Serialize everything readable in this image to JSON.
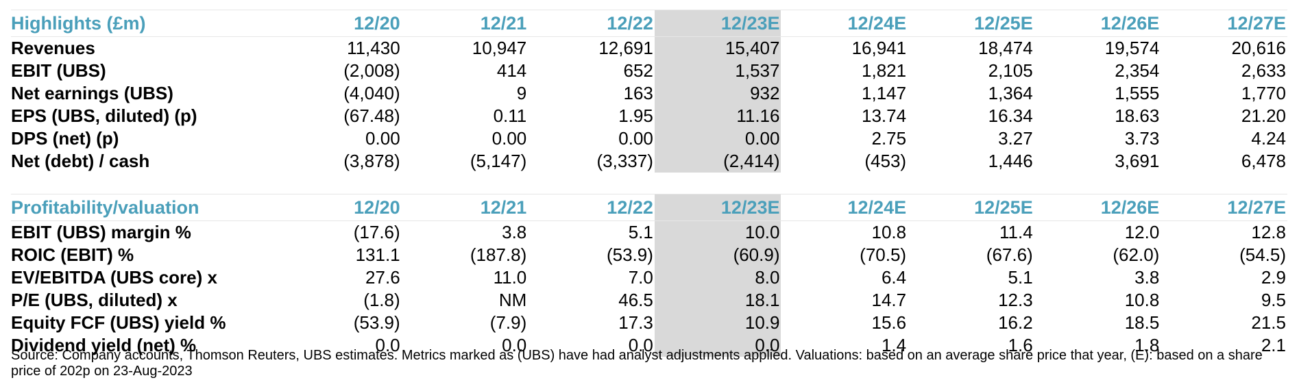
{
  "highlights": {
    "title": "Highlights (£m)",
    "years": [
      "12/20",
      "12/21",
      "12/22",
      "12/23E",
      "12/24E",
      "12/25E",
      "12/26E",
      "12/27E"
    ],
    "rows": [
      {
        "label": "Revenues",
        "values": [
          "11,430",
          "10,947",
          "12,691",
          "15,407",
          "16,941",
          "18,474",
          "19,574",
          "20,616"
        ]
      },
      {
        "label": "EBIT (UBS)",
        "values": [
          "(2,008)",
          "414",
          "652",
          "1,537",
          "1,821",
          "2,105",
          "2,354",
          "2,633"
        ]
      },
      {
        "label": "Net earnings (UBS)",
        "values": [
          "(4,040)",
          "9",
          "163",
          "932",
          "1,147",
          "1,364",
          "1,555",
          "1,770"
        ]
      },
      {
        "label": "EPS (UBS, diluted) (p)",
        "values": [
          "(67.48)",
          "0.11",
          "1.95",
          "11.16",
          "13.74",
          "16.34",
          "18.63",
          "21.20"
        ]
      },
      {
        "label": "DPS (net) (p)",
        "values": [
          "0.00",
          "0.00",
          "0.00",
          "0.00",
          "2.75",
          "3.27",
          "3.73",
          "4.24"
        ]
      },
      {
        "label": "Net (debt) / cash",
        "values": [
          "(3,878)",
          "(5,147)",
          "(3,337)",
          "(2,414)",
          "(453)",
          "1,446",
          "3,691",
          "6,478"
        ]
      }
    ]
  },
  "profitability": {
    "title": "Profitability/valuation",
    "years": [
      "12/20",
      "12/21",
      "12/22",
      "12/23E",
      "12/24E",
      "12/25E",
      "12/26E",
      "12/27E"
    ],
    "rows": [
      {
        "label": "EBIT (UBS) margin %",
        "values": [
          "(17.6)",
          "3.8",
          "5.1",
          "10.0",
          "10.8",
          "11.4",
          "12.0",
          "12.8"
        ]
      },
      {
        "label": "ROIC (EBIT) %",
        "values": [
          "131.1",
          "(187.8)",
          "(53.9)",
          "(60.9)",
          "(70.5)",
          "(67.6)",
          "(62.0)",
          "(54.5)"
        ]
      },
      {
        "label": "EV/EBITDA (UBS core) x",
        "values": [
          "27.6",
          "11.0",
          "7.0",
          "8.0",
          "6.4",
          "5.1",
          "3.8",
          "2.9"
        ]
      },
      {
        "label": "P/E (UBS, diluted) x",
        "values": [
          "(1.8)",
          "NM",
          "46.5",
          "18.1",
          "14.7",
          "12.3",
          "10.8",
          "9.5"
        ]
      },
      {
        "label": "Equity FCF (UBS) yield %",
        "values": [
          "(53.9)",
          "(7.9)",
          "17.3",
          "10.9",
          "15.6",
          "16.2",
          "18.5",
          "21.5"
        ]
      },
      {
        "label": "Dividend yield (net) %",
        "values": [
          "0.0",
          "0.0",
          "0.0",
          "0.0",
          "1.4",
          "1.6",
          "1.8",
          "2.1"
        ]
      }
    ]
  },
  "shaded_column": "12/23E",
  "colors": {
    "header_text": "#4a9fba",
    "shaded_bg": "#d9d9d9",
    "body_text": "#000000"
  },
  "footnote": "Source: Company accounts, Thomson Reuters, UBS estimates. Metrics marked as (UBS) have had analyst adjustments applied. Valuations: based on an average share price that year, (E): based on a share price of 202p on 23-Aug-2023"
}
